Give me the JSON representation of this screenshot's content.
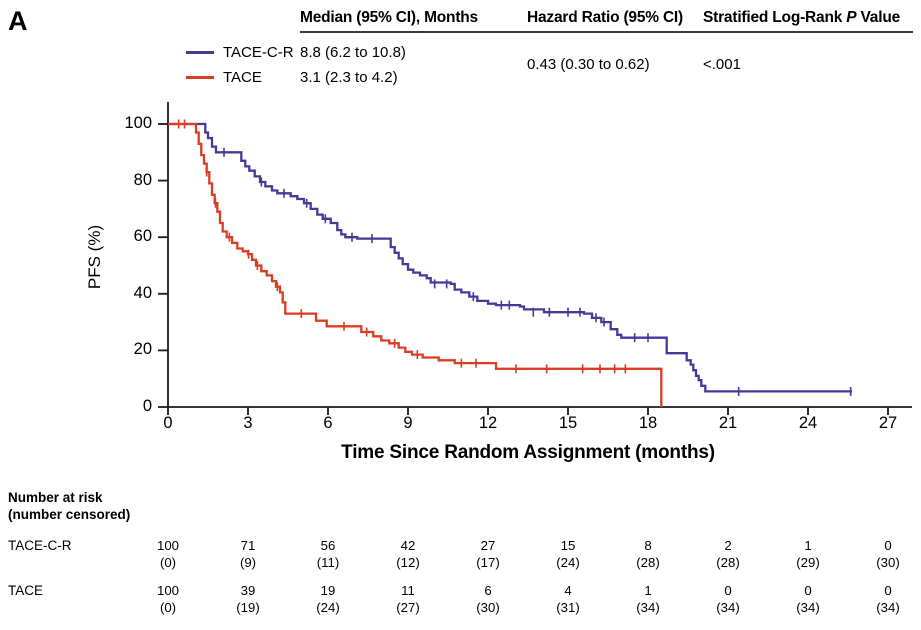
{
  "panel_label": "A",
  "summary": {
    "col_median": "Median (95% CI), Months",
    "col_hazard": "Hazard Ratio (95% CI)",
    "col_p_pre": "Stratified Log-Rank ",
    "col_p_italic": "P",
    "col_p_post": " Value",
    "hazard_ratio": "0.43 (0.30 to 0.62)",
    "p_value": "<.001"
  },
  "chart_data": {
    "type": "line",
    "subtype": "kaplan-meier-step",
    "title": "",
    "xlabel": "Time Since Random Assignment (months)",
    "ylabel": "PFS (%)",
    "xlim": [
      0,
      27
    ],
    "ylim": [
      0,
      100
    ],
    "xticks": [
      0,
      3,
      6,
      9,
      12,
      15,
      18,
      21,
      24,
      27
    ],
    "yticks": [
      0,
      20,
      40,
      60,
      80,
      100
    ],
    "grid": false,
    "legend_position": "top-left-above-plot",
    "axis_color": "#1a1a1a",
    "series": [
      {
        "name": "TACE-C-R",
        "color": "#453a97",
        "median_ci": "8.8 (6.2 to 10.8)",
        "steps": [
          [
            0,
            100
          ],
          [
            1.3,
            100
          ],
          [
            1.4,
            97
          ],
          [
            1.5,
            95
          ],
          [
            1.65,
            92
          ],
          [
            1.8,
            90
          ],
          [
            2.6,
            90
          ],
          [
            2.75,
            87
          ],
          [
            2.9,
            85
          ],
          [
            3.05,
            83.5
          ],
          [
            3.25,
            81.5
          ],
          [
            3.45,
            79.5
          ],
          [
            3.65,
            78
          ],
          [
            3.9,
            76.5
          ],
          [
            4.1,
            75.5
          ],
          [
            4.6,
            74.5
          ],
          [
            4.85,
            73.5
          ],
          [
            5.1,
            72
          ],
          [
            5.35,
            70
          ],
          [
            5.6,
            68
          ],
          [
            5.8,
            66.5
          ],
          [
            6.1,
            65
          ],
          [
            6.35,
            62.5
          ],
          [
            6.5,
            61
          ],
          [
            6.65,
            60
          ],
          [
            7.1,
            59.5
          ],
          [
            8.2,
            59.5
          ],
          [
            8.35,
            56.5
          ],
          [
            8.5,
            54.5
          ],
          [
            8.65,
            52.5
          ],
          [
            8.8,
            50.5
          ],
          [
            9.0,
            48.5
          ],
          [
            9.2,
            47.5
          ],
          [
            9.45,
            46.5
          ],
          [
            9.7,
            45.5
          ],
          [
            9.85,
            44
          ],
          [
            10.6,
            43.5
          ],
          [
            10.75,
            41.5
          ],
          [
            11.0,
            40.5
          ],
          [
            11.3,
            39
          ],
          [
            11.6,
            37.5
          ],
          [
            12.0,
            36.5
          ],
          [
            12.3,
            36
          ],
          [
            13.2,
            35.5
          ],
          [
            13.35,
            34.5
          ],
          [
            14.1,
            33.5
          ],
          [
            15.6,
            33
          ],
          [
            15.9,
            31.5
          ],
          [
            16.25,
            30
          ],
          [
            16.6,
            27.5
          ],
          [
            16.85,
            25.5
          ],
          [
            17.0,
            24.5
          ],
          [
            18.55,
            24.5
          ],
          [
            18.7,
            19
          ],
          [
            19.3,
            19
          ],
          [
            19.45,
            16.5
          ],
          [
            19.6,
            15
          ],
          [
            19.7,
            13
          ],
          [
            19.8,
            11
          ],
          [
            19.9,
            9.5
          ],
          [
            20.0,
            7.5
          ],
          [
            20.15,
            5.5
          ],
          [
            25.65,
            5.5
          ]
        ],
        "censors": [
          [
            2.1,
            90
          ],
          [
            3.5,
            79.5
          ],
          [
            4.35,
            75.5
          ],
          [
            5.2,
            72
          ],
          [
            5.9,
            66.5
          ],
          [
            6.9,
            60
          ],
          [
            7.65,
            59.5
          ],
          [
            10.0,
            43.5
          ],
          [
            10.45,
            43.5
          ],
          [
            11.45,
            39
          ],
          [
            12.5,
            36
          ],
          [
            12.8,
            36
          ],
          [
            13.7,
            33.5
          ],
          [
            14.3,
            33.5
          ],
          [
            15.0,
            33.5
          ],
          [
            15.45,
            33.5
          ],
          [
            16.05,
            31.5
          ],
          [
            16.35,
            30
          ],
          [
            17.5,
            24.5
          ],
          [
            18.0,
            24.5
          ],
          [
            21.4,
            5.5
          ],
          [
            25.6,
            5.5
          ]
        ]
      },
      {
        "name": "TACE",
        "color": "#d93d22",
        "median_ci": "3.1 (2.3 to 4.2)",
        "steps": [
          [
            0,
            100
          ],
          [
            1.0,
            100
          ],
          [
            1.05,
            97
          ],
          [
            1.15,
            93
          ],
          [
            1.25,
            89
          ],
          [
            1.35,
            86
          ],
          [
            1.45,
            83
          ],
          [
            1.55,
            79
          ],
          [
            1.65,
            75
          ],
          [
            1.75,
            72
          ],
          [
            1.85,
            69
          ],
          [
            1.95,
            65
          ],
          [
            2.05,
            62
          ],
          [
            2.2,
            60
          ],
          [
            2.4,
            58
          ],
          [
            2.6,
            56
          ],
          [
            2.8,
            55
          ],
          [
            3.0,
            54
          ],
          [
            3.15,
            52
          ],
          [
            3.3,
            50
          ],
          [
            3.5,
            48
          ],
          [
            3.7,
            46.5
          ],
          [
            3.9,
            44.5
          ],
          [
            4.05,
            42.5
          ],
          [
            4.2,
            40.5
          ],
          [
            4.3,
            37
          ],
          [
            4.4,
            33
          ],
          [
            5.4,
            33
          ],
          [
            5.55,
            30.5
          ],
          [
            5.95,
            28.5
          ],
          [
            7.1,
            28.5
          ],
          [
            7.25,
            26.5
          ],
          [
            7.7,
            25
          ],
          [
            8.0,
            23.5
          ],
          [
            8.3,
            22.5
          ],
          [
            8.65,
            21
          ],
          [
            8.9,
            19.5
          ],
          [
            9.15,
            18.5
          ],
          [
            9.55,
            17.5
          ],
          [
            10.15,
            16.5
          ],
          [
            10.75,
            15.5
          ],
          [
            12.25,
            15.5
          ],
          [
            12.3,
            13.5
          ],
          [
            18.5,
            13.5
          ],
          [
            18.5,
            0
          ]
        ],
        "censors": [
          [
            0.4,
            100
          ],
          [
            0.62,
            100
          ],
          [
            1.45,
            83
          ],
          [
            1.78,
            72
          ],
          [
            2.3,
            60
          ],
          [
            3.02,
            54
          ],
          [
            3.35,
            50
          ],
          [
            4.1,
            42.5
          ],
          [
            5.0,
            33
          ],
          [
            6.6,
            28.5
          ],
          [
            7.45,
            26.5
          ],
          [
            8.5,
            22.5
          ],
          [
            9.35,
            18.5
          ],
          [
            11.0,
            15.5
          ],
          [
            11.55,
            15.5
          ],
          [
            13.05,
            13.5
          ],
          [
            14.2,
            13.5
          ],
          [
            15.55,
            13.5
          ],
          [
            16.2,
            13.5
          ],
          [
            16.75,
            13.5
          ],
          [
            17.15,
            13.5
          ]
        ]
      }
    ],
    "risk_table": {
      "title_line1": "Number at risk",
      "title_line2": "(number censored)",
      "times": [
        0,
        3,
        6,
        9,
        12,
        15,
        18,
        21,
        24,
        27
      ],
      "rows": [
        {
          "label": "TACE-C-R",
          "at_risk": [
            100,
            71,
            56,
            42,
            27,
            15,
            8,
            2,
            1,
            0
          ],
          "censored": [
            0,
            9,
            11,
            12,
            17,
            24,
            28,
            28,
            29,
            30
          ]
        },
        {
          "label": "TACE",
          "at_risk": [
            100,
            39,
            19,
            11,
            6,
            4,
            1,
            0,
            0,
            0
          ],
          "censored": [
            0,
            19,
            24,
            27,
            30,
            31,
            34,
            34,
            34,
            34
          ]
        }
      ]
    }
  }
}
